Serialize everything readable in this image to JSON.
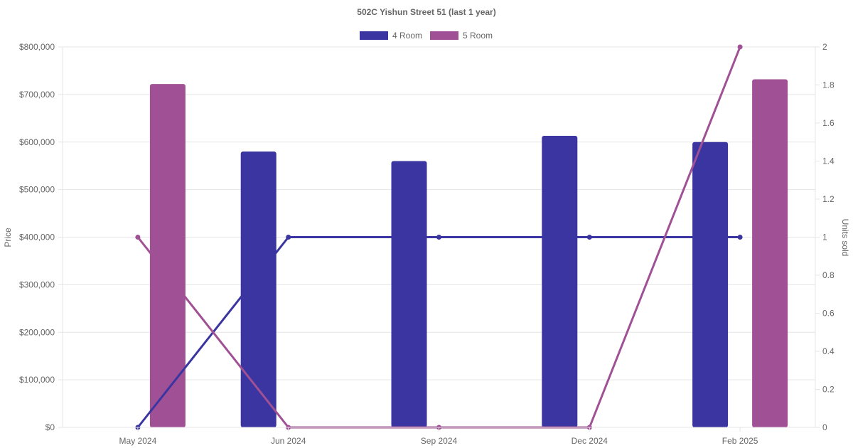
{
  "chart_data": {
    "type": "bar",
    "title": "502C Yishun Street 51 (last 1 year)",
    "legend": {
      "placement": "top",
      "items": [
        "4 Room",
        "5 Room"
      ]
    },
    "x": {
      "ticks": [
        "May 2024",
        "Jun 2024",
        "Sep 2024",
        "Dec 2024",
        "Feb 2025"
      ]
    },
    "y_left": {
      "label": "Price",
      "range": [
        0,
        800000
      ],
      "ticks": [
        "$0",
        "$100,000",
        "$200,000",
        "$300,000",
        "$400,000",
        "$500,000",
        "$600,000",
        "$700,000",
        "$800,000"
      ]
    },
    "y_right": {
      "label": "Units sold",
      "range": [
        0,
        2
      ],
      "ticks": [
        "0",
        "0.2",
        "0.4",
        "0.6",
        "0.8",
        "1",
        "1.2",
        "1.4",
        "1.6",
        "1.8",
        "2"
      ]
    },
    "grid": true,
    "series": [
      {
        "name": "4 Room",
        "kind": "bar",
        "axis": "left",
        "color": "#3a35a0",
        "values": [
          null,
          580000,
          560000,
          613000,
          600000
        ]
      },
      {
        "name": "5 Room",
        "kind": "bar",
        "axis": "left",
        "color": "#a05095",
        "values": [
          722000,
          null,
          null,
          null,
          732000
        ]
      },
      {
        "name": "4 Room",
        "kind": "line",
        "axis": "right",
        "color": "#3a35a0",
        "values": [
          0,
          1,
          1,
          1,
          1
        ]
      },
      {
        "name": "5 Room",
        "kind": "line",
        "axis": "right",
        "color": "#a05095",
        "values": [
          1,
          0,
          0,
          0,
          2
        ]
      }
    ]
  }
}
